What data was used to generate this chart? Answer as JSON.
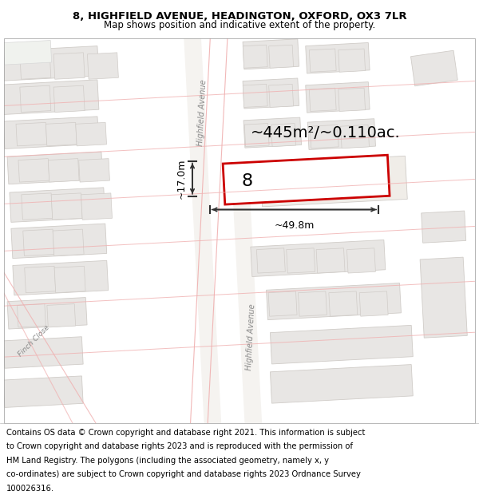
{
  "title_line1": "8, HIGHFIELD AVENUE, HEADINGTON, OXFORD, OX3 7LR",
  "title_line2": "Map shows position and indicative extent of the property.",
  "area_label": "~445m²/~0.110ac.",
  "property_number": "8",
  "width_label": "~49.8m",
  "height_label": "~17.0m",
  "footer_lines": [
    "Contains OS data © Crown copyright and database right 2021. This information is subject",
    "to Crown copyright and database rights 2023 and is reproduced with the permission of",
    "HM Land Registry. The polygons (including the associated geometry, namely x, y",
    "co-ordinates) are subject to Crown copyright and database rights 2023 Ordnance Survey",
    "100026316."
  ],
  "map_bg": "#fafaf8",
  "block_fc": "#e8e6e4",
  "block_ec": "#d0ccc8",
  "road_line_color": "#f0b0b0",
  "road_fill": "#f5f3f0",
  "property_ec": "#cc0000",
  "property_fc": "#ffffff",
  "dim_color": "#303030",
  "street_color": "#888888",
  "title_fontsize": 9.5,
  "subtitle_fontsize": 8.5,
  "footer_fontsize": 7.2,
  "area_fontsize": 14,
  "dim_fontsize": 9,
  "propnum_fontsize": 16,
  "street_fontsize": 7
}
